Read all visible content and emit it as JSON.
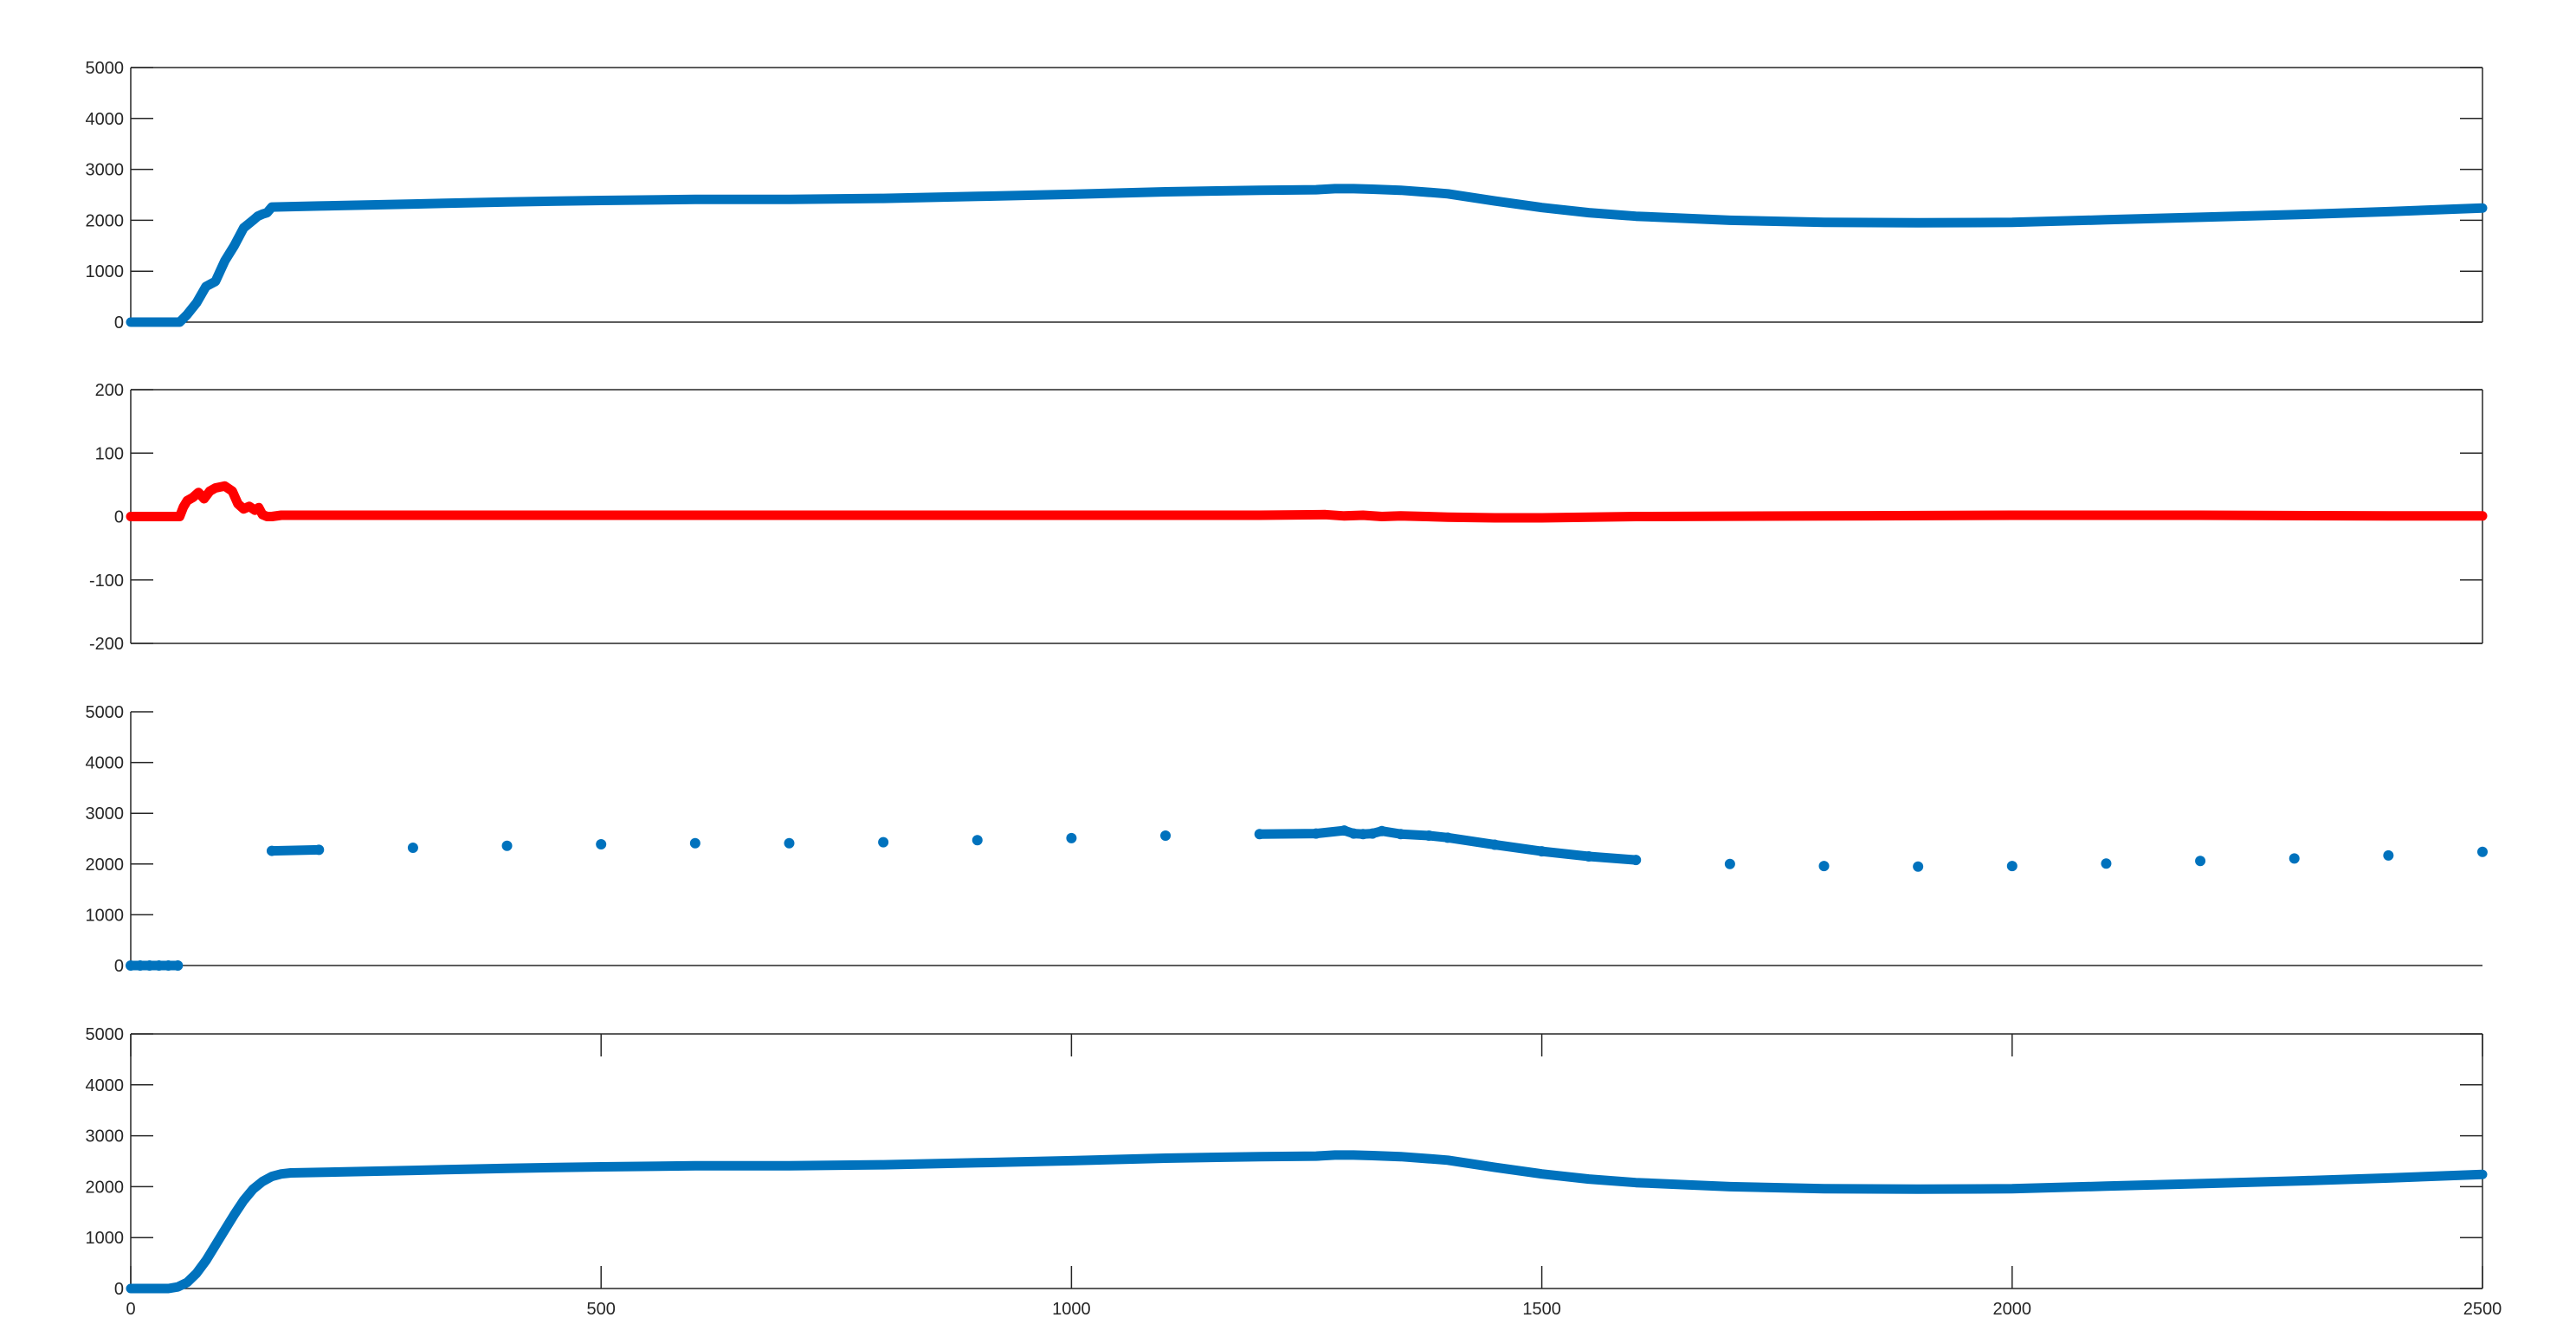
{
  "chart_data": [
    {
      "type": "line",
      "title": "",
      "xlabel": "",
      "ylabel": "",
      "xlim": [
        0,
        2500
      ],
      "ylim": [
        0,
        5000
      ],
      "yticks": [
        0,
        1000,
        2000,
        3000,
        4000,
        5000
      ],
      "ytick_labels": [
        "0",
        "1000",
        "2000",
        "3000",
        "4000",
        "5000"
      ],
      "xticks": [],
      "xtick_labels": [],
      "grid": false,
      "series": [
        {
          "color": "#0072BD",
          "marker": "none",
          "x": [
            0,
            20,
            40,
            52,
            60,
            70,
            80,
            90,
            95,
            100,
            110,
            120,
            130,
            135,
            140,
            145,
            150,
            200,
            300,
            400,
            500,
            600,
            700,
            800,
            900,
            1000,
            1100,
            1200,
            1260,
            1280,
            1300,
            1320,
            1350,
            1380,
            1400,
            1450,
            1500,
            1550,
            1600,
            1700,
            1800,
            1900,
            2000,
            2100,
            2200,
            2300,
            2400,
            2500
          ],
          "y": [
            0,
            0,
            0,
            0,
            150,
            380,
            700,
            800,
            1000,
            1200,
            1500,
            1850,
            2000,
            2080,
            2120,
            2150,
            2260,
            2280,
            2320,
            2360,
            2390,
            2410,
            2410,
            2430,
            2470,
            2510,
            2560,
            2590,
            2600,
            2620,
            2620,
            2610,
            2590,
            2550,
            2520,
            2380,
            2250,
            2150,
            2080,
            2000,
            1960,
            1950,
            1960,
            2010,
            2060,
            2110,
            2170,
            2240
          ]
        }
      ]
    },
    {
      "type": "line",
      "title": "",
      "xlabel": "",
      "ylabel": "",
      "xlim": [
        0,
        2500
      ],
      "ylim": [
        -200,
        200
      ],
      "yticks": [
        -200,
        -100,
        0,
        100,
        200
      ],
      "ytick_labels": [
        "-200",
        "-100",
        "0",
        "100",
        "200"
      ],
      "xticks": [],
      "xtick_labels": [],
      "grid": false,
      "series": [
        {
          "color": "#FF0000",
          "marker": "none",
          "x": [
            0,
            20,
            40,
            52,
            56,
            60,
            66,
            72,
            78,
            84,
            90,
            100,
            108,
            114,
            120,
            126,
            132,
            136,
            140,
            145,
            150,
            160,
            200,
            400,
            600,
            800,
            1000,
            1200,
            1270,
            1290,
            1310,
            1330,
            1350,
            1400,
            1450,
            1500,
            1600,
            1800,
            2000,
            2200,
            2400,
            2500
          ],
          "y": [
            0,
            0,
            0,
            0,
            15,
            25,
            30,
            38,
            28,
            40,
            45,
            48,
            40,
            20,
            12,
            16,
            10,
            14,
            3,
            0,
            0,
            2,
            2,
            2,
            2,
            2,
            2,
            2,
            3,
            1,
            2,
            0,
            1,
            -1,
            -2,
            -2,
            0,
            1,
            2,
            2,
            1,
            1
          ]
        }
      ]
    },
    {
      "type": "scatter",
      "title": "",
      "xlabel": "",
      "ylabel": "",
      "xlim": [
        0,
        2500
      ],
      "ylim": [
        0,
        5000
      ],
      "yticks": [
        0,
        1000,
        2000,
        3000,
        4000,
        5000
      ],
      "ytick_labels": [
        "0",
        "1000",
        "2000",
        "3000",
        "4000",
        "5000"
      ],
      "xticks": [],
      "xtick_labels": [],
      "grid": false,
      "series": [
        {
          "color": "#0072BD",
          "marker": "dot",
          "x": [
            0,
            10,
            20,
            30,
            40,
            50,
            150,
            200,
            300,
            400,
            500,
            600,
            700,
            800,
            900,
            1000,
            1100,
            1200,
            1260,
            1290,
            1300,
            1310,
            1320,
            1330,
            1350,
            1380,
            1400,
            1450,
            1500,
            1550,
            1600,
            1700,
            1800,
            1900,
            2000,
            2100,
            2200,
            2300,
            2400,
            2500
          ],
          "y": [
            0,
            0,
            0,
            0,
            0,
            0,
            2260,
            2280,
            2320,
            2360,
            2390,
            2410,
            2410,
            2430,
            2470,
            2510,
            2560,
            2590,
            2600,
            2660,
            2600,
            2590,
            2600,
            2650,
            2590,
            2560,
            2520,
            2380,
            2250,
            2150,
            2080,
            2000,
            1960,
            1950,
            1960,
            2010,
            2060,
            2110,
            2170,
            2240
          ]
        }
      ]
    },
    {
      "type": "line",
      "title": "",
      "xlabel": "",
      "ylabel": "",
      "xlim": [
        0,
        2500
      ],
      "ylim": [
        0,
        5000
      ],
      "yticks": [
        0,
        1000,
        2000,
        3000,
        4000,
        5000
      ],
      "ytick_labels": [
        "0",
        "1000",
        "2000",
        "3000",
        "4000",
        "5000"
      ],
      "xticks": [
        0,
        500,
        1000,
        1500,
        2000,
        2500
      ],
      "xtick_labels": [
        "0",
        "500",
        "1000",
        "1500",
        "2000",
        "2500"
      ],
      "grid": false,
      "series": [
        {
          "color": "#0072BD",
          "marker": "none",
          "x": [
            0,
            20,
            40,
            50,
            60,
            70,
            80,
            90,
            100,
            110,
            120,
            130,
            140,
            150,
            160,
            170,
            200,
            300,
            400,
            500,
            600,
            700,
            800,
            900,
            1000,
            1100,
            1200,
            1260,
            1280,
            1300,
            1320,
            1350,
            1380,
            1400,
            1450,
            1500,
            1550,
            1600,
            1700,
            1800,
            1900,
            2000,
            2100,
            2200,
            2300,
            2400,
            2500
          ],
          "y": [
            0,
            0,
            0,
            30,
            120,
            300,
            550,
            850,
            1150,
            1450,
            1730,
            1950,
            2100,
            2200,
            2250,
            2270,
            2280,
            2320,
            2360,
            2390,
            2410,
            2410,
            2430,
            2470,
            2510,
            2560,
            2590,
            2600,
            2620,
            2620,
            2610,
            2590,
            2550,
            2520,
            2380,
            2250,
            2150,
            2080,
            2000,
            1960,
            1950,
            1960,
            2010,
            2060,
            2110,
            2170,
            2240
          ]
        }
      ]
    }
  ]
}
